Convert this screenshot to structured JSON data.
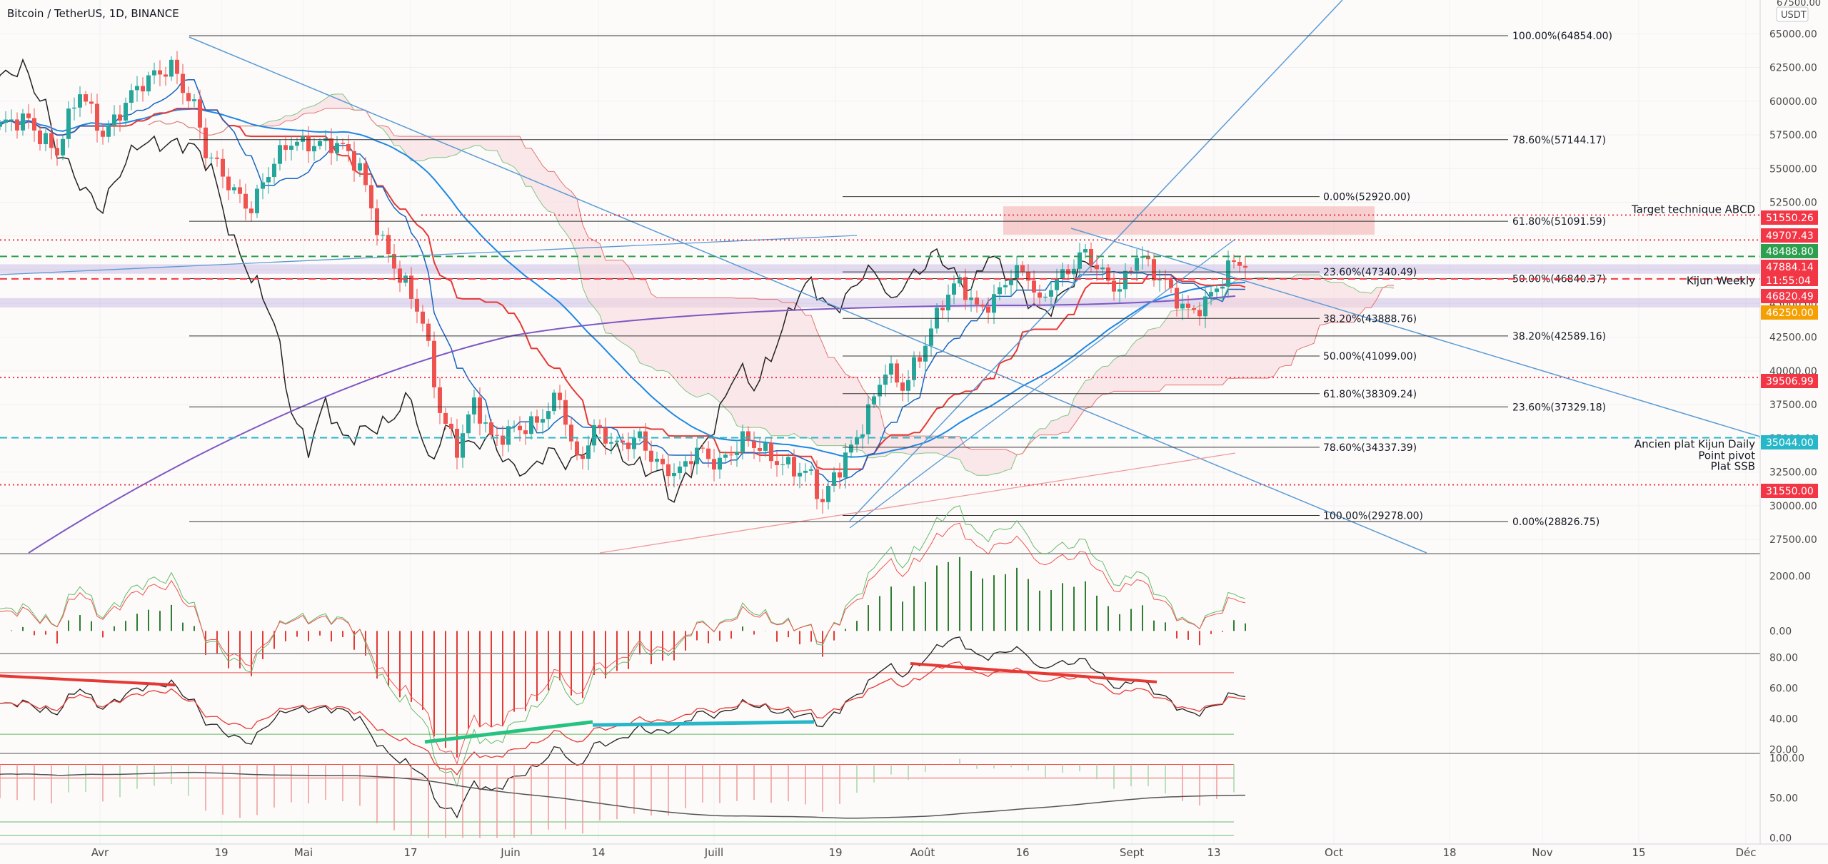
{
  "header": {
    "symbol_title": "Bitcoin / TetherUS, 1D, BINANCE",
    "currency": "USDT",
    "top_price": "67500.00"
  },
  "colors": {
    "background": "#fcfbfa",
    "grid": "#f1f1f1",
    "price_line": "#1e88e5",
    "tenkan": "#1565c0",
    "kijun": "#e53935",
    "chikou": "#222222",
    "ma_long": "#7e57c2",
    "bull_candle": "#26a69a",
    "bear_candle": "#ef5350",
    "green_level": "#2e9e4f",
    "cyan_level": "#26b7c8",
    "fib_line": "#333333",
    "trend_line": "#5b9bd5",
    "orange_label": "#f59f00",
    "red_label": "#f23645",
    "cloud_red": "#f8d7da",
    "cloud_green": "#e3f3e5"
  },
  "chart_data": {
    "type": "candlestick",
    "title": "Bitcoin / TetherUS, 1D, BINANCE",
    "currency": "USDT",
    "ylim": [
      26500,
      67500
    ],
    "y_ticks": [
      "65000.00",
      "62500.00",
      "60000.00",
      "57500.00",
      "55000.00",
      "52500.00",
      "50000.00",
      "47500.00",
      "45000.00",
      "42500.00",
      "40000.00",
      "37500.00",
      "35000.00",
      "32500.00",
      "30000.00",
      "27500.00"
    ],
    "x_ticks": [
      "Avr",
      "19",
      "Mai",
      "17",
      "Juin",
      "14",
      "Juill",
      "19",
      "Août",
      "16",
      "Sept",
      "13",
      "Oct",
      "18",
      "Nov",
      "15",
      "Déc"
    ],
    "price_scale_labels": [
      {
        "text": "51550.26",
        "color": "#f23645"
      },
      {
        "text": "49707.43",
        "color": "#f23645"
      },
      {
        "text": "48488.80",
        "color": "#2e9e4f"
      },
      {
        "text": "47884.14",
        "color": "#f23645"
      },
      {
        "text": "11:55:04",
        "color": "#f23645"
      },
      {
        "text": "46820.49",
        "color": "#f23645"
      },
      {
        "text": "46250.00",
        "color": "#f59f00"
      },
      {
        "text": "39506.99",
        "color": "#f23645"
      },
      {
        "text": "35044.00",
        "color": "#26b7c8"
      },
      {
        "text": "31550.00",
        "color": "#f23645"
      }
    ],
    "fib_retracement_1": [
      {
        "text": "100.00%(64854.00)",
        "price": 64854
      },
      {
        "text": "78.60%(57144.17)",
        "price": 57144
      },
      {
        "text": "61.80%(51091.59)",
        "price": 51092
      },
      {
        "text": "50.00%(46840.37)",
        "price": 46840
      },
      {
        "text": "38.20%(42589.16)",
        "price": 42589
      },
      {
        "text": "23.60%(37329.18)",
        "price": 37329
      },
      {
        "text": "0.00%(28826.75)",
        "price": 28827
      }
    ],
    "fib_retracement_2": [
      {
        "text": "0.00%(52920.00)",
        "price": 52920
      },
      {
        "text": "23.60%(47340.49)",
        "price": 47340
      },
      {
        "text": "38.20%(43888.76)",
        "price": 43889
      },
      {
        "text": "50.00%(41099.00)",
        "price": 41099
      },
      {
        "text": "61.80%(38309.24)",
        "price": 38309
      },
      {
        "text": "78.60%(34337.39)",
        "price": 34337
      },
      {
        "text": "100.00%(29278.00)",
        "price": 29278
      }
    ],
    "annotations": [
      {
        "text": "Target technique ABCD",
        "price": 51550
      },
      {
        "text": "Kijun Weekly",
        "price": 46250
      },
      {
        "text": "Ancien plat Kijun Daily",
        "price": 34150
      },
      {
        "text": "Point pivot",
        "price": 33300
      },
      {
        "text": "Plat SSB",
        "price": 32500
      }
    ],
    "horizontal_levels": [
      {
        "price": 51550,
        "style": "dotted-red"
      },
      {
        "price": 49707,
        "style": "dotted-red"
      },
      {
        "price": 48489,
        "style": "dashed-green"
      },
      {
        "price": 46820,
        "style": "dashed-red"
      },
      {
        "price": 39507,
        "style": "dotted-red"
      },
      {
        "price": 35044,
        "style": "dashed-cyan"
      },
      {
        "price": 31550,
        "style": "dotted-red"
      }
    ],
    "zones": [
      {
        "from": 47200,
        "to": 47900
      },
      {
        "from": 44700,
        "to": 45400
      }
    ],
    "close_series": {
      "name": "",
      "points": [
        [
          0,
          57800
        ],
        [
          5,
          58800
        ],
        [
          10,
          56200
        ],
        [
          14,
          60500
        ],
        [
          18,
          57900
        ],
        [
          22,
          59800
        ],
        [
          26,
          61400
        ],
        [
          30,
          63000
        ],
        [
          34,
          59500
        ],
        [
          36,
          55900
        ],
        [
          40,
          54000
        ],
        [
          44,
          52300
        ],
        [
          47,
          54500
        ],
        [
          51,
          57000
        ],
        [
          55,
          57200
        ],
        [
          59,
          56500
        ],
        [
          63,
          55000
        ],
        [
          67,
          49800
        ],
        [
          70,
          46800
        ],
        [
          74,
          43500
        ],
        [
          77,
          37400
        ],
        [
          80,
          34400
        ],
        [
          83,
          37300
        ],
        [
          86,
          34800
        ],
        [
          90,
          36100
        ],
        [
          94,
          35900
        ],
        [
          98,
          37900
        ],
        [
          101,
          33500
        ],
        [
          104,
          35800
        ],
        [
          108,
          34000
        ],
        [
          112,
          35300
        ],
        [
          116,
          32800
        ],
        [
          119,
          32100
        ],
        [
          122,
          34100
        ],
        [
          126,
          33500
        ],
        [
          130,
          34600
        ],
        [
          134,
          33900
        ],
        [
          138,
          33300
        ],
        [
          142,
          31900
        ],
        [
          144,
          29800
        ],
        [
          146,
          32200
        ],
        [
          149,
          34700
        ],
        [
          152,
          36900
        ],
        [
          155,
          39800
        ],
        [
          158,
          38800
        ],
        [
          162,
          42400
        ],
        [
          165,
          44900
        ],
        [
          168,
          46300
        ],
        [
          171,
          44800
        ],
        [
          174,
          45600
        ],
        [
          177,
          47000
        ],
        [
          180,
          46800
        ],
        [
          182,
          44900
        ],
        [
          184,
          46800
        ],
        [
          187,
          47600
        ],
        [
          190,
          48400
        ],
        [
          193,
          47000
        ],
        [
          196,
          46400
        ],
        [
          199,
          48800
        ],
        [
          202,
          46900
        ],
        [
          205,
          45800
        ],
        [
          208,
          44700
        ],
        [
          211,
          45100
        ],
        [
          214,
          46400
        ],
        [
          216,
          47900
        ],
        [
          218,
          48100
        ]
      ]
    },
    "indicators": [
      {
        "name": "",
        "type": "macd",
        "ylim": [
          -800,
          2800
        ],
        "ticks": [
          "2000.00",
          "0.00"
        ]
      },
      {
        "name": "",
        "type": "rsi",
        "ylim": [
          18,
          82
        ],
        "ticks": [
          "80.00",
          "60.00",
          "40.00",
          "20.00"
        ]
      },
      {
        "name": "",
        "type": "oscillator",
        "ylim": [
          -5,
          105
        ],
        "ticks": [
          "100.00",
          "50.00",
          "0.00"
        ]
      }
    ]
  }
}
